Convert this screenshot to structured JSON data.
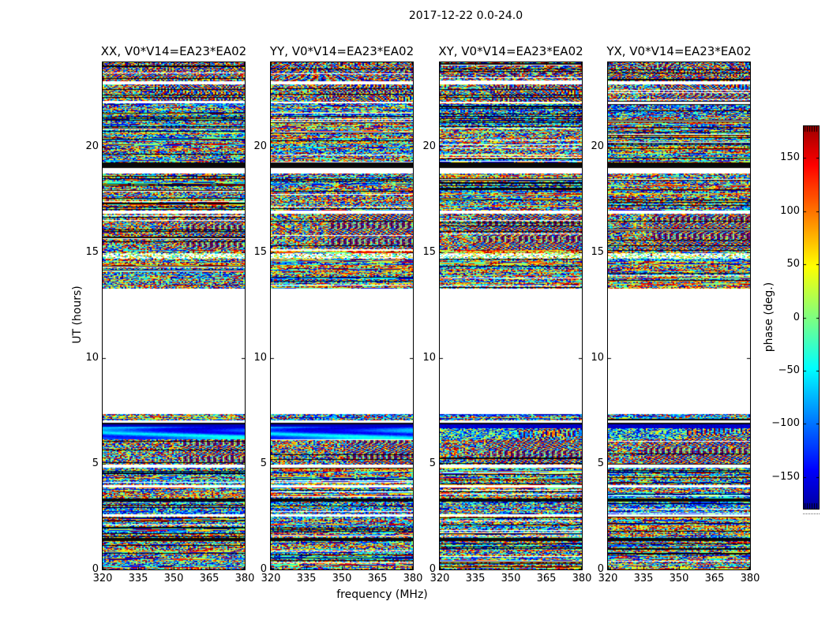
{
  "figure": {
    "title": "2017-12-22 0.0-24.0"
  },
  "chart_data": {
    "type": "heatmap",
    "title": "2017-12-22 0.0-24.0",
    "date": "2017-12-22",
    "time_range_hours": [
      0.0,
      24.0
    ],
    "baseline": "V0*V14=EA23*EA02",
    "subplots": [
      {
        "polarization": "XX",
        "title": "XX, V0*V14=EA23*EA02"
      },
      {
        "polarization": "YY",
        "title": "YY, V0*V14=EA23*EA02"
      },
      {
        "polarization": "XY",
        "title": "XY, V0*V14=EA23*EA02"
      },
      {
        "polarization": "YX",
        "title": "YX, V0*V14=EA23*EA02"
      }
    ],
    "xlabel": "frequency (MHz)",
    "ylabel": "UT (hours)",
    "xlim": [
      320,
      380
    ],
    "ylim": [
      0,
      24
    ],
    "xticks": [
      320,
      335,
      350,
      365,
      380
    ],
    "yticks": [
      0,
      5,
      10,
      15,
      20
    ],
    "colorbar": {
      "label": "phase (deg.)",
      "tick_labels": [
        "150",
        "100",
        "50",
        "0",
        "−50",
        "−100",
        "−150"
      ],
      "tick_values": [
        150,
        100,
        50,
        0,
        -50,
        -100,
        -150
      ],
      "range_deg": [
        -180,
        180
      ],
      "colormap": "jet"
    },
    "data_gaps_ut_hours": [
      [
        7.35,
        13.3
      ]
    ],
    "time_bands": [
      [
        23.1,
        24.01,
        "fringe_swirl"
      ],
      [
        22.95,
        23.1,
        "white"
      ],
      [
        22.15,
        22.95,
        "fringe_mix"
      ],
      [
        22.05,
        22.15,
        "white"
      ],
      [
        21.4,
        22.05,
        "noise_fine"
      ],
      [
        19.25,
        21.4,
        "noise"
      ],
      [
        19.0,
        19.25,
        "black"
      ],
      [
        18.75,
        19.0,
        "white"
      ],
      [
        17.0,
        18.75,
        "noise"
      ],
      [
        16.85,
        17.0,
        "white"
      ],
      [
        15.1,
        16.85,
        "noise_mix"
      ],
      [
        14.95,
        15.1,
        "noise"
      ],
      [
        14.7,
        14.95,
        "white_bright"
      ],
      [
        13.3,
        14.7,
        "noise"
      ],
      [
        7.35,
        13.3,
        "gap"
      ],
      [
        7.05,
        7.35,
        "noise_fine"
      ],
      [
        6.95,
        7.05,
        "white"
      ],
      [
        6.85,
        6.95,
        "black"
      ],
      [
        6.15,
        6.85,
        "smooth"
      ],
      [
        4.95,
        6.15,
        "noise_mix"
      ],
      [
        4.8,
        4.95,
        "white"
      ],
      [
        4.0,
        4.8,
        "noise"
      ],
      [
        3.9,
        4.0,
        "white"
      ],
      [
        3.35,
        3.9,
        "noise"
      ],
      [
        3.2,
        3.35,
        "black"
      ],
      [
        2.6,
        3.2,
        "noise_fine"
      ],
      [
        2.5,
        2.6,
        "white"
      ],
      [
        1.5,
        2.5,
        "noise"
      ],
      [
        1.35,
        1.5,
        "black"
      ],
      [
        0.0,
        1.35,
        "noise"
      ]
    ]
  },
  "colors": {
    "background": "#ffffff",
    "axis": "#000000",
    "text": "#000000",
    "gap_fill": "#ffffff"
  }
}
